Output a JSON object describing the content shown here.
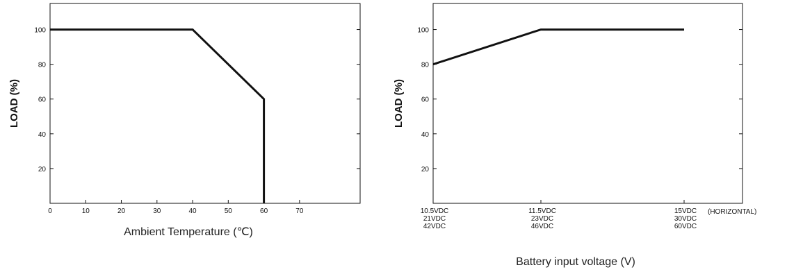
{
  "chart_data": [
    {
      "type": "line",
      "title": "",
      "xlabel": "Ambient Temperature (℃)",
      "ylabel": "LOAD (%)",
      "xlim": [
        0,
        87
      ],
      "ylim": [
        0,
        115
      ],
      "x_ticks": [
        "0",
        "10",
        "20",
        "30",
        "40",
        "50",
        "60",
        "70"
      ],
      "y_ticks": [
        "20",
        "40",
        "60",
        "80",
        "100"
      ],
      "grid": false,
      "series": [
        {
          "x": [
            0,
            40,
            60,
            60
          ],
          "y": [
            100,
            100,
            60,
            0
          ]
        }
      ]
    },
    {
      "type": "line",
      "title": "",
      "xlabel": "Battery input voltage (V)",
      "ylabel": "LOAD (%)",
      "ylim": [
        0,
        115
      ],
      "x_categories": [
        [
          "10.5VDC",
          "21VDC",
          "42VDC"
        ],
        [
          "11.5VDC",
          "23VDC",
          "46VDC"
        ],
        [
          "15VDC",
          "30VDC",
          "60VDC"
        ]
      ],
      "x_note": "(HORIZONTAL)",
      "y_ticks": [
        "20",
        "40",
        "60",
        "80",
        "100"
      ],
      "grid": false,
      "series": [
        {
          "x": [
            "10.5VDC",
            "11.5VDC",
            "15VDC"
          ],
          "y": [
            80,
            100,
            100
          ]
        }
      ]
    }
  ]
}
